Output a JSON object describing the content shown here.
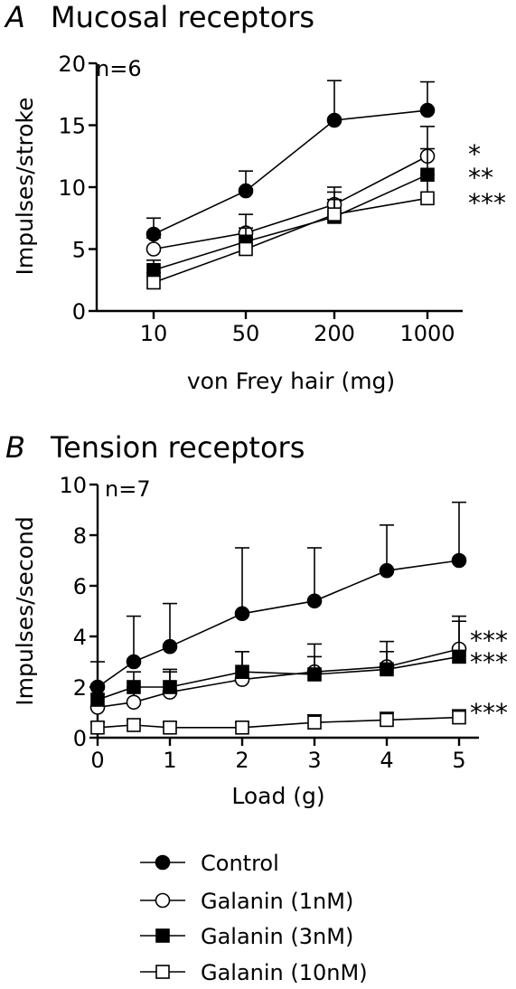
{
  "chart_data": [
    {
      "type": "line",
      "panel_letter": "A",
      "title": "Mucosal receptors",
      "annotation": "n=6",
      "xlabel": "von Frey hair (mg)",
      "ylabel": "Impulses/stroke",
      "categories": [
        "10",
        "50",
        "200",
        "1000"
      ],
      "ylim": [
        0,
        20
      ],
      "yticks": [
        "0",
        "5",
        "10",
        "15",
        "20"
      ],
      "series": [
        {
          "name": "Control",
          "marker": "filled-circle",
          "values": [
            6.2,
            9.7,
            15.4,
            16.2
          ],
          "errors": [
            1.3,
            1.6,
            3.2,
            2.3
          ]
        },
        {
          "name": "Galanin (1nM)",
          "marker": "open-circle",
          "values": [
            5.0,
            6.3,
            8.6,
            12.5
          ],
          "errors": [
            0.9,
            1.5,
            1.4,
            2.4
          ]
        },
        {
          "name": "Galanin (3nM)",
          "marker": "filled-square",
          "values": [
            3.3,
            5.6,
            7.6,
            11.0
          ],
          "errors": [
            0.8,
            1.1,
            1.4,
            2.1
          ]
        },
        {
          "name": "Galanin (10nM)",
          "marker": "open-square",
          "values": [
            2.3,
            5.0,
            7.8,
            9.1
          ],
          "errors": [
            0.8,
            0.9,
            1.8,
            1.9
          ]
        }
      ],
      "significance": [
        "*",
        "**",
        "***"
      ]
    },
    {
      "type": "line",
      "panel_letter": "B",
      "title": "Tension receptors",
      "annotation": "n=7",
      "xlabel": "Load (g)",
      "ylabel": "Impulses/second",
      "x": [
        0,
        0.5,
        1,
        2,
        3,
        4,
        5
      ],
      "xticks": [
        "0",
        "1",
        "2",
        "3",
        "4",
        "5"
      ],
      "ylim": [
        0,
        10
      ],
      "yticks": [
        "0",
        "2",
        "4",
        "6",
        "8",
        "10"
      ],
      "series": [
        {
          "name": "Control",
          "marker": "filled-circle",
          "values": [
            2.0,
            3.0,
            3.6,
            4.9,
            5.4,
            6.6,
            7.0
          ],
          "errors": [
            1.0,
            1.8,
            1.7,
            2.6,
            2.1,
            1.8,
            2.3
          ]
        },
        {
          "name": "Galanin (1nM)",
          "marker": "open-circle",
          "values": [
            1.2,
            1.4,
            1.8,
            2.3,
            2.6,
            2.8,
            3.5
          ],
          "errors": [
            0.5,
            0.6,
            0.8,
            1.1,
            1.1,
            1.0,
            1.3
          ]
        },
        {
          "name": "Galanin (3nM)",
          "marker": "filled-square",
          "values": [
            1.5,
            2.0,
            2.0,
            2.6,
            2.5,
            2.7,
            3.2
          ],
          "errors": [
            0.6,
            0.6,
            0.7,
            0.8,
            0.7,
            0.7,
            1.4
          ]
        },
        {
          "name": "Galanin (10nM)",
          "marker": "open-square",
          "values": [
            0.4,
            0.5,
            0.4,
            0.4,
            0.6,
            0.7,
            0.8
          ],
          "errors": [
            0.2,
            0.2,
            0.2,
            0.2,
            0.3,
            0.3,
            0.3
          ]
        }
      ],
      "significance": [
        "***",
        "***",
        "***"
      ]
    }
  ],
  "legend": {
    "placement": "bottom",
    "items": [
      {
        "label": "Control",
        "marker": "filled-circle"
      },
      {
        "label": "Galanin (1nM)",
        "marker": "open-circle"
      },
      {
        "label": "Galanin (3nM)",
        "marker": "filled-square"
      },
      {
        "label": "Galanin (10nM)",
        "marker": "open-square"
      }
    ]
  }
}
